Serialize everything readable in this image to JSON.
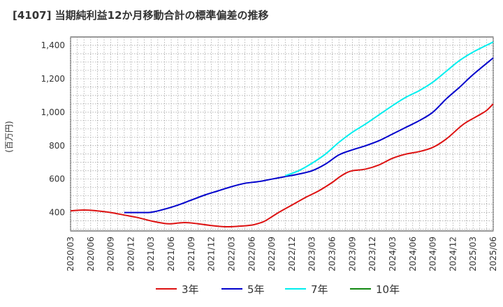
{
  "chart_data": {
    "type": "line",
    "title": "[4107]  当期純利益12か月移動合計の標準偏差の推移",
    "xlabel": "",
    "ylabel": "(百万円)",
    "ylim": [
      290,
      1450
    ],
    "yticks": [
      400,
      600,
      800,
      1000,
      1200,
      1400
    ],
    "ytick_labels": [
      "400",
      "600",
      "800",
      "1,000",
      "1,200",
      "1,400"
    ],
    "xlim": [
      "2020/03",
      "2025/06"
    ],
    "xticks": [
      "2020/03",
      "2020/06",
      "2020/09",
      "2020/12",
      "2021/03",
      "2021/06",
      "2021/09",
      "2021/12",
      "2022/03",
      "2022/06",
      "2022/09",
      "2022/12",
      "2023/03",
      "2023/06",
      "2023/09",
      "2023/12",
      "2024/03",
      "2024/06",
      "2024/09",
      "2024/12",
      "2025/03",
      "2025/06"
    ],
    "grid": true,
    "legend_position": "bottom",
    "series": [
      {
        "name": "3年",
        "color": "#dd1111",
        "points": [
          [
            "2020/03",
            410
          ],
          [
            "2020/05",
            415
          ],
          [
            "2020/07",
            410
          ],
          [
            "2020/09",
            400
          ],
          [
            "2020/11",
            385
          ],
          [
            "2021/01",
            370
          ],
          [
            "2021/03",
            350
          ],
          [
            "2021/05",
            335
          ],
          [
            "2021/06",
            333
          ],
          [
            "2021/08",
            340
          ],
          [
            "2021/10",
            333
          ],
          [
            "2021/12",
            322
          ],
          [
            "2022/02",
            315
          ],
          [
            "2022/04",
            318
          ],
          [
            "2022/06",
            325
          ],
          [
            "2022/07",
            335
          ],
          [
            "2022/08",
            350
          ],
          [
            "2022/10",
            400
          ],
          [
            "2022/12",
            445
          ],
          [
            "2023/02",
            490
          ],
          [
            "2023/04",
            530
          ],
          [
            "2023/06",
            580
          ],
          [
            "2023/07",
            610
          ],
          [
            "2023/08",
            635
          ],
          [
            "2023/09",
            650
          ],
          [
            "2023/11",
            660
          ],
          [
            "2024/01",
            685
          ],
          [
            "2024/03",
            725
          ],
          [
            "2024/05",
            750
          ],
          [
            "2024/07",
            765
          ],
          [
            "2024/09",
            790
          ],
          [
            "2024/11",
            840
          ],
          [
            "2025/01",
            910
          ],
          [
            "2025/02",
            940
          ],
          [
            "2025/04",
            985
          ],
          [
            "2025/05",
            1010
          ],
          [
            "2025/06",
            1050
          ]
        ]
      },
      {
        "name": "5年",
        "color": "#0000cc",
        "points": [
          [
            "2020/11",
            400
          ],
          [
            "2021/01",
            400
          ],
          [
            "2021/03",
            402
          ],
          [
            "2021/05",
            420
          ],
          [
            "2021/07",
            445
          ],
          [
            "2021/09",
            475
          ],
          [
            "2021/11",
            505
          ],
          [
            "2022/01",
            530
          ],
          [
            "2022/03",
            555
          ],
          [
            "2022/05",
            575
          ],
          [
            "2022/07",
            585
          ],
          [
            "2022/09",
            600
          ],
          [
            "2022/11",
            615
          ],
          [
            "2023/01",
            630
          ],
          [
            "2023/03",
            650
          ],
          [
            "2023/05",
            690
          ],
          [
            "2023/07",
            745
          ],
          [
            "2023/09",
            775
          ],
          [
            "2023/11",
            800
          ],
          [
            "2024/01",
            830
          ],
          [
            "2024/03",
            870
          ],
          [
            "2024/05",
            910
          ],
          [
            "2024/07",
            950
          ],
          [
            "2024/09",
            1000
          ],
          [
            "2024/11",
            1080
          ],
          [
            "2025/01",
            1150
          ],
          [
            "2025/03",
            1225
          ],
          [
            "2025/06",
            1325
          ]
        ]
      },
      {
        "name": "7年",
        "color": "#00eeee",
        "points": [
          [
            "2022/11",
            620
          ],
          [
            "2023/01",
            650
          ],
          [
            "2023/03",
            695
          ],
          [
            "2023/05",
            750
          ],
          [
            "2023/07",
            820
          ],
          [
            "2023/09",
            880
          ],
          [
            "2023/11",
            930
          ],
          [
            "2024/01",
            985
          ],
          [
            "2024/03",
            1040
          ],
          [
            "2024/05",
            1090
          ],
          [
            "2024/07",
            1130
          ],
          [
            "2024/09",
            1180
          ],
          [
            "2024/11",
            1245
          ],
          [
            "2025/01",
            1310
          ],
          [
            "2025/03",
            1360
          ],
          [
            "2025/06",
            1420
          ]
        ]
      },
      {
        "name": "10年",
        "color": "#118811",
        "points": []
      }
    ]
  }
}
